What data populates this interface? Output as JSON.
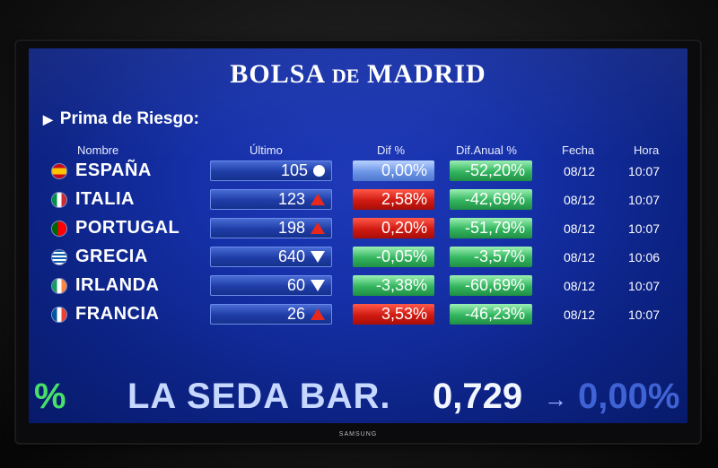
{
  "title_main": "BOLSA",
  "title_de": "DE",
  "title_end": "MADRID",
  "section_title": "Prima de Riesgo:",
  "headers": {
    "nombre": "Nombre",
    "ultimo": "Último",
    "dif": "Dif %",
    "anual": "Dif.Anual %",
    "fecha": "Fecha",
    "hora": "Hora"
  },
  "rows": [
    {
      "name": "ESPAÑA",
      "last": "105",
      "trend": "neutral",
      "dif": "0,00%",
      "anual": "-52,20%",
      "date": "08/12",
      "time": "10:07"
    },
    {
      "name": "ITALIA",
      "last": "123",
      "trend": "up",
      "dif": "2,58%",
      "anual": "-42,69%",
      "date": "08/12",
      "time": "10:07"
    },
    {
      "name": "PORTUGAL",
      "last": "198",
      "trend": "up",
      "dif": "0,20%",
      "anual": "-51,79%",
      "date": "08/12",
      "time": "10:07"
    },
    {
      "name": "GRECIA",
      "last": "640",
      "trend": "down",
      "dif": "-0,05%",
      "anual": "-3,57%",
      "date": "08/12",
      "time": "10:06"
    },
    {
      "name": "IRLANDA",
      "last": "60",
      "trend": "down",
      "dif": "-3,38%",
      "anual": "-60,69%",
      "date": "08/12",
      "time": "10:07"
    },
    {
      "name": "FRANCIA",
      "last": "26",
      "trend": "up",
      "dif": "3,53%",
      "anual": "-46,23%",
      "date": "08/12",
      "time": "10:07"
    }
  ],
  "ticker": {
    "left_pct": "%",
    "name": "LA SEDA BAR.",
    "price": "0,729",
    "arrow": "→",
    "change": "0,00%"
  },
  "monitor_brand": "SAMSUNG",
  "colors": {
    "up": "#d01a12",
    "down": "#33b55e",
    "neutral": "#6d96e6",
    "screen": "#1530a8"
  }
}
